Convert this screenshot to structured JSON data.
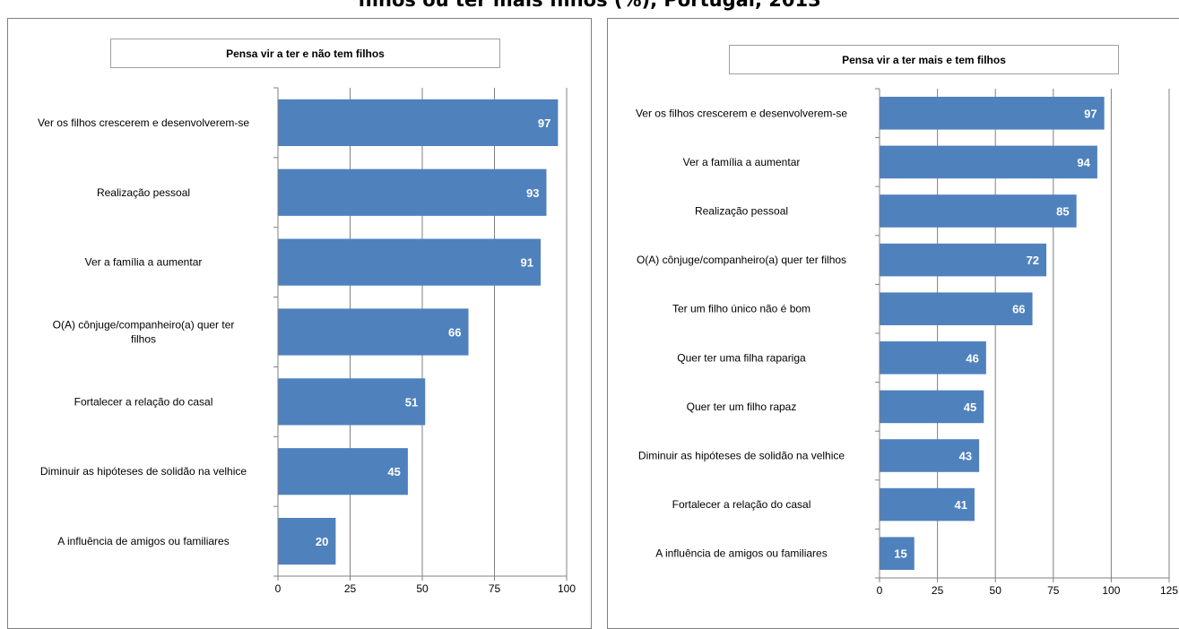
{
  "page_title": "filhos ou ter mais filhos (%), Portugal, 2013",
  "colors": {
    "bar": "#4f81bd",
    "grid": "#808080"
  },
  "chart_data": [
    {
      "type": "bar",
      "orientation": "horizontal",
      "title": "Pensa vir a ter e não tem filhos",
      "categories": [
        [
          "Ver os filhos crescerem e desenvolverem-se"
        ],
        [
          "Realização pessoal"
        ],
        [
          "Ver a família a aumentar"
        ],
        [
          "O(A) cônjuge/companheiro(a)  quer ter",
          "filhos"
        ],
        [
          "Fortalecer a relação do casal"
        ],
        [
          "Diminuir as hipóteses de solidão na velhice"
        ],
        [
          "A influência de amigos ou familiares"
        ]
      ],
      "values": [
        97,
        93,
        91,
        66,
        51,
        45,
        20
      ],
      "xlim": [
        0,
        100
      ],
      "ticks": [
        0,
        25,
        50,
        75,
        100
      ],
      "grid": true
    },
    {
      "type": "bar",
      "orientation": "horizontal",
      "title": "Pensa vir a ter mais e tem filhos",
      "categories": [
        [
          "Ver os filhos crescerem e desenvolverem-se"
        ],
        [
          "Ver a família a aumentar"
        ],
        [
          "Realização pessoal"
        ],
        [
          "O(A) cônjuge/companheiro(a)  quer ter filhos"
        ],
        [
          "Ter um filho único não é bom"
        ],
        [
          "Quer ter uma filha rapariga"
        ],
        [
          "Quer ter um filho rapaz"
        ],
        [
          "Diminuir as hipóteses de solidão na velhice"
        ],
        [
          "Fortalecer a relação do casal"
        ],
        [
          "A influência de amigos ou familiares"
        ]
      ],
      "values": [
        97,
        94,
        85,
        72,
        66,
        46,
        45,
        43,
        41,
        15
      ],
      "xlim": [
        0,
        125
      ],
      "ticks": [
        0,
        25,
        50,
        75,
        100,
        125
      ],
      "grid": true
    }
  ]
}
